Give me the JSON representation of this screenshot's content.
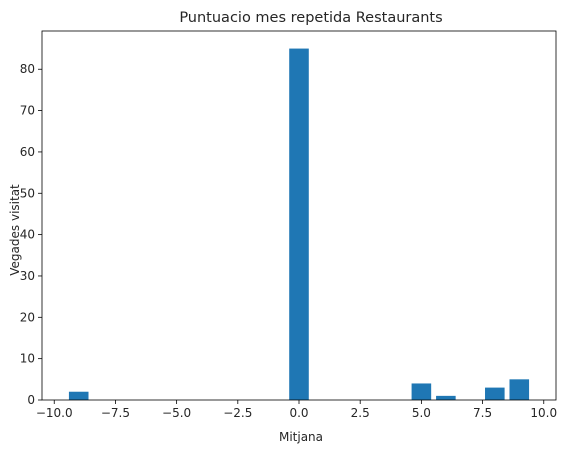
{
  "chart_data": {
    "type": "bar",
    "title": "Puntuacio mes repetida Restaurants",
    "xlabel": "Mitjana",
    "ylabel": "Vegades visitat",
    "x": [
      -9,
      0,
      5,
      6,
      8,
      9
    ],
    "values": [
      2,
      85,
      4,
      1,
      3,
      5
    ],
    "bar_width": 0.8,
    "xlim": [
      -10.5,
      10.5
    ],
    "ylim": [
      0,
      89.25
    ],
    "x_ticks": [
      -10.0,
      -7.5,
      -5.0,
      -2.5,
      0.0,
      2.5,
      5.0,
      7.5,
      10.0
    ],
    "x_tick_labels": [
      "−10.0",
      "−7.5",
      "−5.0",
      "−2.5",
      "0.0",
      "2.5",
      "5.0",
      "7.5",
      "10.0"
    ],
    "y_ticks": [
      0,
      10,
      20,
      30,
      40,
      50,
      60,
      70,
      80
    ],
    "y_tick_labels": [
      "0",
      "10",
      "20",
      "30",
      "40",
      "50",
      "60",
      "70",
      "80"
    ],
    "grid": false,
    "bar_color": "#1f77b4"
  }
}
